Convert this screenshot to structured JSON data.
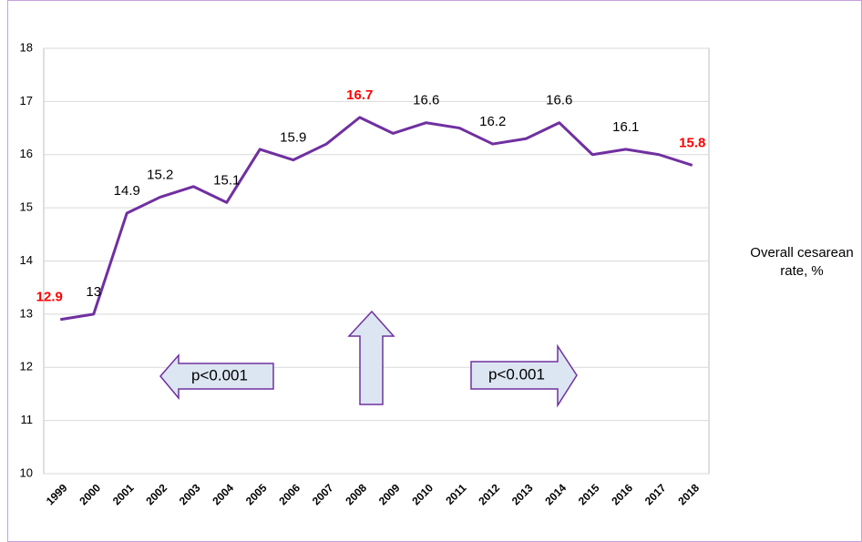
{
  "chart_data": {
    "type": "line",
    "categories": [
      "1999",
      "2000",
      "2001",
      "2002",
      "2003",
      "2004",
      "2005",
      "2006",
      "2007",
      "2008",
      "2009",
      "2010",
      "2011",
      "2012",
      "2013",
      "2014",
      "2015",
      "2016",
      "2017",
      "2018"
    ],
    "series": [
      {
        "name": "Overall cesarean rate, %",
        "color": "#7030a0",
        "values": [
          12.9,
          13,
          14.9,
          15.2,
          15.4,
          15.1,
          16.1,
          15.9,
          16.2,
          16.7,
          16.4,
          16.6,
          16.5,
          16.2,
          16.3,
          16.6,
          16.0,
          16.1,
          16.0,
          15.8
        ],
        "value_labels": [
          "12.9",
          "13",
          "14.9",
          "15.2",
          null,
          "15.1",
          null,
          "15.9",
          null,
          "16.7",
          null,
          "16.6",
          null,
          "16.2",
          null,
          "16.6",
          null,
          "16.1",
          null,
          "15.8"
        ],
        "value_label_colors": [
          "#ff0000",
          "#000000",
          "#000000",
          "#000000",
          null,
          "#000000",
          null,
          "#000000",
          null,
          "#ff0000",
          null,
          "#000000",
          null,
          "#000000",
          null,
          "#000000",
          null,
          "#000000",
          null,
          "#ff0000"
        ]
      }
    ],
    "ylim": [
      10,
      18
    ],
    "yticks": [
      10,
      11,
      12,
      13,
      14,
      15,
      16,
      17,
      18
    ],
    "grid": true,
    "legend": "right",
    "annotations": [
      {
        "text": "p<0.001"
      },
      {
        "text": "p<0.001"
      }
    ]
  }
}
